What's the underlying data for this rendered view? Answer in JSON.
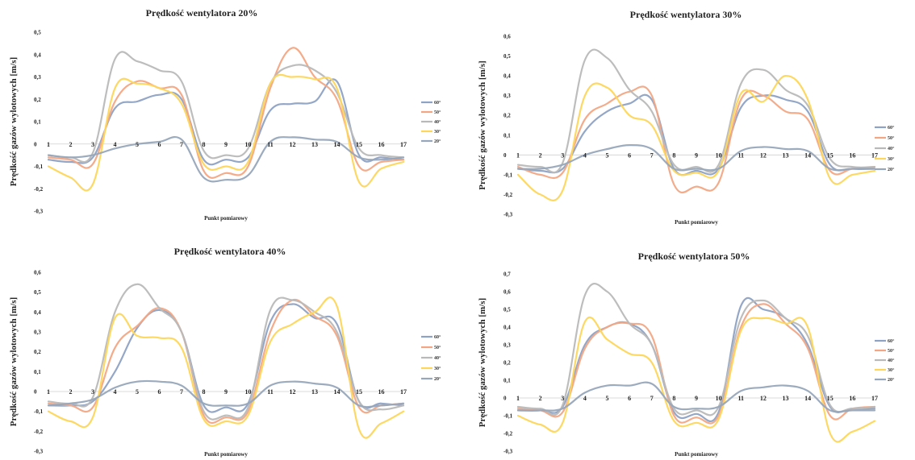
{
  "colors": {
    "60°": "#8ea2c4",
    "50°": "#f3a684",
    "40°": "#b9b9b9",
    "30°": "#fdd65b",
    "20°": "#97a6bb",
    "accent": "#4a4a4a"
  },
  "chart_data": [
    {
      "type": "line",
      "title": "Prędkość wentylatora 20%",
      "xlabel": "Punkt pomiarowy",
      "ylabel": "Prędkość gazów wylotowych [m/s]",
      "ylim": [
        -0.3,
        0.5
      ],
      "yticks": [
        "0,5",
        "0,4",
        "0,3",
        "0,2",
        "0,1",
        "0",
        "-0,1",
        "-0,2",
        "-0,3"
      ],
      "ytick_values": [
        0.5,
        0.4,
        0.3,
        0.2,
        0.1,
        0,
        -0.1,
        -0.2,
        -0.3
      ],
      "categories": [
        "1",
        "2",
        "3",
        "4",
        "5",
        "6",
        "7",
        "8",
        "9",
        "10",
        "11",
        "12",
        "13",
        "14",
        "15",
        "16",
        "17"
      ],
      "legend_position": "right",
      "series": [
        {
          "name": "60°",
          "values": [
            -0.07,
            -0.08,
            -0.06,
            0.16,
            0.19,
            0.22,
            0.2,
            -0.07,
            -0.07,
            -0.06,
            0.15,
            0.18,
            0.19,
            0.28,
            -0.05,
            -0.06,
            -0.07
          ]
        },
        {
          "name": "50°",
          "values": [
            -0.06,
            -0.07,
            -0.09,
            0.19,
            0.28,
            0.25,
            0.22,
            -0.12,
            -0.13,
            -0.1,
            0.25,
            0.43,
            0.3,
            0.2,
            -0.1,
            -0.08,
            -0.07
          ]
        },
        {
          "name": "40°",
          "values": [
            -0.05,
            -0.06,
            -0.04,
            0.38,
            0.37,
            0.33,
            0.28,
            -0.03,
            -0.05,
            -0.02,
            0.27,
            0.35,
            0.33,
            0.23,
            -0.02,
            -0.05,
            -0.06
          ]
        },
        {
          "name": "30°",
          "values": [
            -0.1,
            -0.15,
            -0.18,
            0.25,
            0.27,
            0.25,
            0.18,
            -0.09,
            -0.1,
            -0.08,
            0.27,
            0.3,
            0.29,
            0.25,
            -0.17,
            -0.11,
            -0.08
          ]
        },
        {
          "name": "20°",
          "values": [
            -0.05,
            -0.06,
            -0.05,
            -0.02,
            0,
            0.01,
            0.02,
            -0.15,
            -0.16,
            -0.14,
            0.01,
            0.03,
            0.02,
            0.01,
            -0.06,
            -0.07,
            -0.06
          ]
        }
      ]
    },
    {
      "type": "line",
      "title": "Prędkość wentylatora 30%",
      "xlabel": "Punkt pomiarowy",
      "ylabel": "Prędkość gazów wylotowych [m/s]",
      "ylim": [
        -0.3,
        0.6
      ],
      "yticks": [
        "0,6",
        "0,5",
        "0,4",
        "0,3",
        "0,2",
        "0,1",
        "0",
        "-0,1",
        "-0,2",
        "-0,3"
      ],
      "ytick_values": [
        0.6,
        0.5,
        0.4,
        0.3,
        0.2,
        0.1,
        0,
        -0.1,
        -0.2,
        -0.3
      ],
      "categories": [
        "1",
        "2",
        "3",
        "4",
        "5",
        "6",
        "7",
        "8",
        "9",
        "10",
        "11",
        "12",
        "13",
        "14",
        "15",
        "16",
        "17"
      ],
      "legend_position": "right",
      "series": [
        {
          "name": "60°",
          "values": [
            -0.07,
            -0.08,
            -0.07,
            0.12,
            0.22,
            0.26,
            0.28,
            -0.07,
            -0.08,
            -0.07,
            0.24,
            0.3,
            0.28,
            0.22,
            -0.05,
            -0.07,
            -0.07
          ]
        },
        {
          "name": "50°",
          "values": [
            -0.06,
            -0.1,
            -0.09,
            0.18,
            0.26,
            0.32,
            0.3,
            -0.15,
            -0.16,
            -0.14,
            0.28,
            0.3,
            0.22,
            0.18,
            -0.08,
            -0.07,
            -0.06
          ]
        },
        {
          "name": "40°",
          "values": [
            -0.05,
            -0.06,
            -0.04,
            0.48,
            0.49,
            0.33,
            0.22,
            -0.05,
            -0.06,
            -0.05,
            0.36,
            0.43,
            0.33,
            0.25,
            -0.02,
            -0.06,
            -0.06
          ]
        },
        {
          "name": "30°",
          "values": [
            -0.1,
            -0.2,
            -0.18,
            0.3,
            0.34,
            0.2,
            0.15,
            -0.08,
            -0.09,
            -0.08,
            0.31,
            0.27,
            0.4,
            0.28,
            -0.12,
            -0.1,
            -0.08
          ]
        },
        {
          "name": "20°",
          "values": [
            -0.07,
            -0.07,
            -0.05,
            0,
            0.03,
            0.05,
            0.03,
            -0.07,
            -0.07,
            -0.07,
            0.02,
            0.04,
            0.03,
            0.02,
            -0.07,
            -0.07,
            -0.07
          ]
        }
      ]
    },
    {
      "type": "line",
      "title": "Prędkość wentylatora 40%",
      "xlabel": "Punkt pomiarowy",
      "ylabel": "Prędkość gazów wylotowych [m/s]",
      "ylim": [
        -0.3,
        0.6
      ],
      "yticks": [
        "0,6",
        "0,5",
        "0,4",
        "0,3",
        "0,2",
        "0,1",
        "0",
        "-0,1",
        "-0,2",
        "-0,3"
      ],
      "ytick_values": [
        0.6,
        0.5,
        0.4,
        0.3,
        0.2,
        0.1,
        0,
        -0.1,
        -0.2,
        -0.3
      ],
      "categories": [
        "1",
        "2",
        "3",
        "4",
        "5",
        "6",
        "7",
        "8",
        "9",
        "10",
        "11",
        "12",
        "13",
        "14",
        "15",
        "16",
        "17"
      ],
      "legend_position": "right",
      "series": [
        {
          "name": "60°",
          "values": [
            -0.07,
            -0.07,
            -0.05,
            0.1,
            0.32,
            0.41,
            0.3,
            -0.07,
            -0.08,
            -0.06,
            0.35,
            0.44,
            0.37,
            0.34,
            -0.05,
            -0.06,
            -0.07
          ]
        },
        {
          "name": "50°",
          "values": [
            -0.06,
            -0.07,
            -0.08,
            0.22,
            0.33,
            0.42,
            0.3,
            -0.12,
            -0.13,
            -0.1,
            0.3,
            0.46,
            0.38,
            0.28,
            -0.08,
            -0.07,
            -0.06
          ]
        },
        {
          "name": "40°",
          "values": [
            -0.05,
            -0.06,
            -0.03,
            0.4,
            0.54,
            0.42,
            0.3,
            -0.1,
            -0.12,
            -0.08,
            0.41,
            0.46,
            0.4,
            0.3,
            -0.05,
            -0.09,
            -0.07
          ]
        },
        {
          "name": "30°",
          "values": [
            -0.1,
            -0.15,
            -0.13,
            0.37,
            0.28,
            0.27,
            0.22,
            -0.14,
            -0.15,
            -0.12,
            0.25,
            0.34,
            0.4,
            0.43,
            -0.19,
            -0.16,
            -0.1
          ]
        },
        {
          "name": "20°",
          "values": [
            -0.07,
            -0.06,
            -0.04,
            0.02,
            0.05,
            0.05,
            0.03,
            -0.06,
            -0.07,
            -0.06,
            0.03,
            0.05,
            0.04,
            0.02,
            -0.07,
            -0.07,
            -0.06
          ]
        }
      ]
    },
    {
      "type": "line",
      "title": "Prędkość wentylatora 50%",
      "xlabel": "Punkt pomiarowy",
      "ylabel": "Prędkość gazów wylotowych [m/s]",
      "ylim": [
        -0.3,
        0.7
      ],
      "yticks": [
        "0,7",
        "0,6",
        "0,5",
        "0,4",
        "0,3",
        "0,2",
        "0,1",
        "0",
        "-0,1",
        "-0,2",
        "-0,3"
      ],
      "ytick_values": [
        0.7,
        0.6,
        0.5,
        0.4,
        0.3,
        0.2,
        0.1,
        0,
        -0.1,
        -0.2,
        -0.3
      ],
      "categories": [
        "1",
        "2",
        "3",
        "4",
        "5",
        "6",
        "7",
        "8",
        "9",
        "10",
        "11",
        "12",
        "13",
        "14",
        "15",
        "16",
        "17"
      ],
      "legend_position": "right",
      "series": [
        {
          "name": "60°",
          "values": [
            -0.07,
            -0.07,
            -0.05,
            0.3,
            0.4,
            0.42,
            0.3,
            -0.08,
            -0.09,
            -0.08,
            0.52,
            0.5,
            0.45,
            0.3,
            -0.05,
            -0.06,
            -0.06
          ]
        },
        {
          "name": "50°",
          "values": [
            -0.06,
            -0.07,
            -0.08,
            0.28,
            0.4,
            0.42,
            0.35,
            -0.1,
            -0.11,
            -0.1,
            0.4,
            0.53,
            0.42,
            0.28,
            -0.1,
            -0.06,
            -0.05
          ]
        },
        {
          "name": "40°",
          "values": [
            -0.05,
            -0.06,
            -0.04,
            0.58,
            0.6,
            0.42,
            0.3,
            -0.06,
            -0.07,
            -0.05,
            0.45,
            0.55,
            0.45,
            0.35,
            -0.04,
            -0.06,
            -0.05
          ]
        },
        {
          "name": "30°",
          "values": [
            -0.1,
            -0.15,
            -0.14,
            0.43,
            0.33,
            0.25,
            0.2,
            -0.13,
            -0.14,
            -0.12,
            0.38,
            0.45,
            0.42,
            0.4,
            -0.2,
            -0.19,
            -0.13
          ]
        },
        {
          "name": "20°",
          "values": [
            -0.07,
            -0.07,
            -0.06,
            0.03,
            0.07,
            0.07,
            0.08,
            -0.05,
            -0.06,
            -0.05,
            0.04,
            0.06,
            0.07,
            0.04,
            -0.07,
            -0.07,
            -0.07
          ]
        }
      ]
    }
  ]
}
